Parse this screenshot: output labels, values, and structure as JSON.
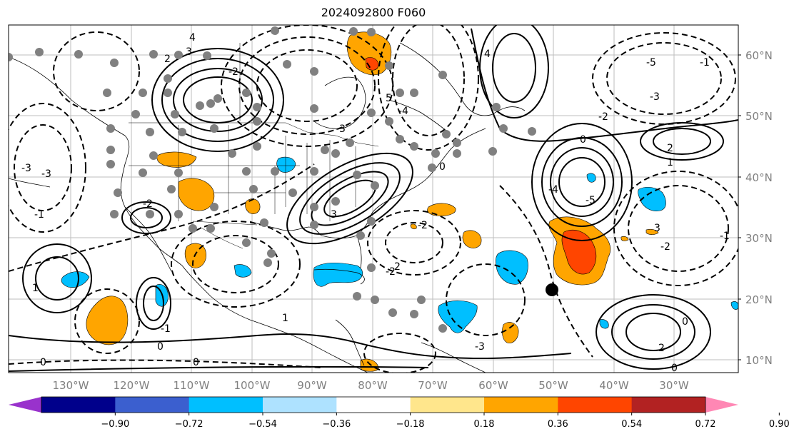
{
  "title": "2024092800 F060",
  "map": {
    "lat_labels": [
      "60°N",
      "50°N",
      "40°N",
      "30°N",
      "20°N",
      "10°N"
    ],
    "lon_labels": [
      "130°W",
      "120°W",
      "110°W",
      "100°W",
      "90°W",
      "80°W",
      "70°W",
      "60°W",
      "50°W",
      "40°W",
      "30°W"
    ],
    "contour_labels": [
      "4",
      "3",
      "2",
      "-2",
      "-3",
      "5",
      "-4",
      "-5",
      "0",
      "1",
      "-1",
      "-2",
      "2",
      "-3",
      "3",
      "-2",
      "-1",
      "0",
      "2",
      "-2",
      "1",
      "0",
      "-1",
      "1",
      "2",
      "-2",
      "-5",
      "-4",
      "4",
      "0",
      "-1",
      "3",
      "-3",
      "0",
      "0",
      "-3",
      "-2",
      "-3",
      "0"
    ],
    "storm_marker": "storm-center",
    "colors": {
      "purple": "#9932cc",
      "navy": "#00008b",
      "royal": "#3b5fcf",
      "deepskyblue": "#00bfff",
      "lightblue": "#aee2ff",
      "white": "#ffffff",
      "lightyellow": "#ffe68c",
      "orange": "#ffa500",
      "orangered": "#ff4500",
      "firebrick": "#b22222",
      "pink": "#ff87b4"
    }
  },
  "colorbar": {
    "ticks": [
      "−0.90",
      "−0.72",
      "−0.54",
      "−0.36",
      "−0.18",
      "0.18",
      "0.36",
      "0.54",
      "0.72",
      "0.90"
    ],
    "segment_colors": [
      "#9932cc",
      "#00008b",
      "#3b5fcf",
      "#00bfff",
      "#aee2ff",
      "#ffffff",
      "#ffe68c",
      "#ffa500",
      "#ff4500",
      "#b22222",
      "#ff87b4"
    ]
  }
}
